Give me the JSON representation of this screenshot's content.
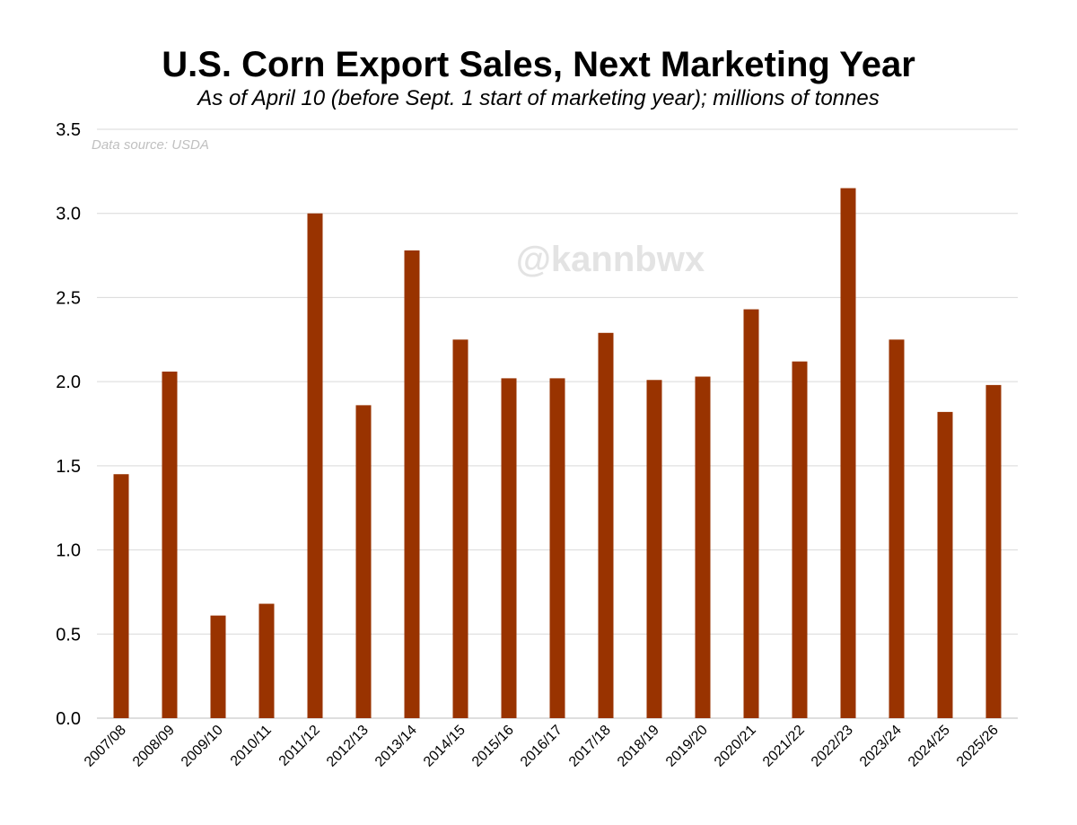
{
  "chart_data": {
    "type": "bar",
    "title": "U.S. Corn Export Sales, Next Marketing Year",
    "subtitle": "As of April 10 (before Sept. 1 start of marketing year); millions of tonnes",
    "source_note": "Data source: USDA",
    "watermark": "@kannbwx",
    "xlabel": "",
    "ylabel": "",
    "ylim": [
      0,
      3.5
    ],
    "yticks": [
      "0.0",
      "0.5",
      "1.0",
      "1.5",
      "2.0",
      "2.5",
      "3.0",
      "3.5"
    ],
    "grid": true,
    "legend": "none",
    "bar_color": "#993300",
    "categories": [
      "2007/08",
      "2008/09",
      "2009/10",
      "2010/11",
      "2011/12",
      "2012/13",
      "2013/14",
      "2014/15",
      "2015/16",
      "2016/17",
      "2017/18",
      "2018/19",
      "2019/20",
      "2020/21",
      "2021/22",
      "2022/23",
      "2023/24",
      "2024/25",
      "2025/26"
    ],
    "values": [
      1.45,
      2.06,
      0.61,
      0.68,
      3.0,
      1.86,
      2.78,
      2.25,
      2.02,
      2.02,
      2.29,
      2.01,
      2.03,
      2.43,
      2.12,
      3.15,
      2.25,
      1.82,
      1.98
    ]
  }
}
